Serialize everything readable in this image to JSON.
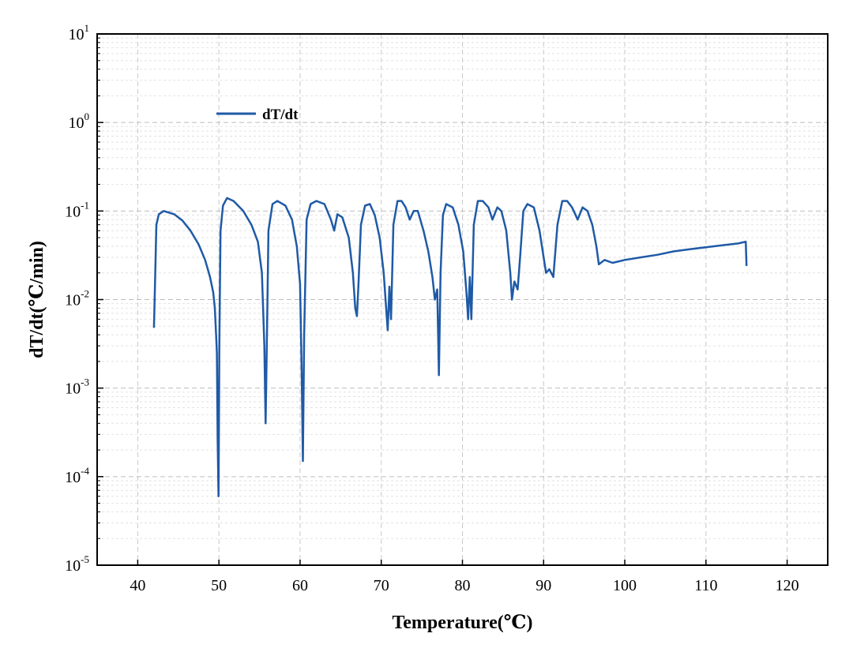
{
  "chart_data": {
    "type": "line",
    "title": "",
    "xlabel": "Temperature(℃)",
    "ylabel": "dT/dt(℃/min)",
    "xlim": [
      35,
      125
    ],
    "ylim": [
      1e-05,
      10
    ],
    "yscale": "log",
    "x_ticks": [
      40,
      50,
      60,
      70,
      80,
      90,
      100,
      110,
      120
    ],
    "y_tick_base": "10",
    "y_tick_exponents": [
      "-5",
      "-4",
      "-3",
      "-2",
      "-1",
      "0",
      "1"
    ],
    "grid": true,
    "legend_position": "top-left",
    "series": [
      {
        "name": "dT/dt",
        "color": "#1f5aa6",
        "points": [
          [
            42.0,
            0.0048
          ],
          [
            42.1,
            0.012
          ],
          [
            42.3,
            0.07
          ],
          [
            42.6,
            0.092
          ],
          [
            43.2,
            0.1
          ],
          [
            44.5,
            0.092
          ],
          [
            45.5,
            0.078
          ],
          [
            46.5,
            0.06
          ],
          [
            47.5,
            0.042
          ],
          [
            48.3,
            0.028
          ],
          [
            48.9,
            0.018
          ],
          [
            49.3,
            0.012
          ],
          [
            49.5,
            0.008
          ],
          [
            49.65,
            0.004
          ],
          [
            49.75,
            0.0025
          ],
          [
            49.85,
            0.00025
          ],
          [
            49.95,
            6e-05
          ],
          [
            50.05,
            0.003
          ],
          [
            50.2,
            0.06
          ],
          [
            50.5,
            0.115
          ],
          [
            51.0,
            0.14
          ],
          [
            51.8,
            0.13
          ],
          [
            53.0,
            0.1
          ],
          [
            54.0,
            0.07
          ],
          [
            54.8,
            0.045
          ],
          [
            55.3,
            0.02
          ],
          [
            55.6,
            0.003
          ],
          [
            55.75,
            0.0004
          ],
          [
            55.9,
            0.003
          ],
          [
            56.1,
            0.06
          ],
          [
            56.6,
            0.12
          ],
          [
            57.2,
            0.13
          ],
          [
            58.2,
            0.115
          ],
          [
            59.0,
            0.08
          ],
          [
            59.6,
            0.04
          ],
          [
            60.0,
            0.015
          ],
          [
            60.2,
            0.0015
          ],
          [
            60.35,
            0.00015
          ],
          [
            60.5,
            0.004
          ],
          [
            60.8,
            0.08
          ],
          [
            61.3,
            0.12
          ],
          [
            62.0,
            0.13
          ],
          [
            63.0,
            0.12
          ],
          [
            63.8,
            0.08
          ],
          [
            64.2,
            0.06
          ],
          [
            64.6,
            0.092
          ],
          [
            65.2,
            0.085
          ],
          [
            66.0,
            0.05
          ],
          [
            66.5,
            0.02
          ],
          [
            66.8,
            0.008
          ],
          [
            67.0,
            0.0065
          ],
          [
            67.2,
            0.015
          ],
          [
            67.5,
            0.07
          ],
          [
            68.0,
            0.115
          ],
          [
            68.6,
            0.12
          ],
          [
            69.2,
            0.09
          ],
          [
            69.8,
            0.05
          ],
          [
            70.3,
            0.02
          ],
          [
            70.6,
            0.008
          ],
          [
            70.8,
            0.0045
          ],
          [
            71.0,
            0.014
          ],
          [
            71.2,
            0.006
          ],
          [
            71.5,
            0.07
          ],
          [
            72.0,
            0.13
          ],
          [
            72.5,
            0.13
          ],
          [
            73.0,
            0.11
          ],
          [
            73.5,
            0.08
          ],
          [
            74.0,
            0.1
          ],
          [
            74.5,
            0.1
          ],
          [
            75.2,
            0.06
          ],
          [
            75.8,
            0.035
          ],
          [
            76.3,
            0.018
          ],
          [
            76.6,
            0.01
          ],
          [
            76.9,
            0.013
          ],
          [
            77.1,
            0.0014
          ],
          [
            77.3,
            0.02
          ],
          [
            77.6,
            0.09
          ],
          [
            78.0,
            0.12
          ],
          [
            78.8,
            0.11
          ],
          [
            79.5,
            0.07
          ],
          [
            80.1,
            0.035
          ],
          [
            80.5,
            0.012
          ],
          [
            80.7,
            0.006
          ],
          [
            80.9,
            0.018
          ],
          [
            81.1,
            0.006
          ],
          [
            81.4,
            0.07
          ],
          [
            81.9,
            0.13
          ],
          [
            82.5,
            0.13
          ],
          [
            83.2,
            0.11
          ],
          [
            83.7,
            0.08
          ],
          [
            84.3,
            0.11
          ],
          [
            84.8,
            0.1
          ],
          [
            85.4,
            0.06
          ],
          [
            85.9,
            0.02
          ],
          [
            86.1,
            0.01
          ],
          [
            86.4,
            0.016
          ],
          [
            86.8,
            0.013
          ],
          [
            87.1,
            0.03
          ],
          [
            87.5,
            0.1
          ],
          [
            88.0,
            0.12
          ],
          [
            88.8,
            0.11
          ],
          [
            89.5,
            0.06
          ],
          [
            90.0,
            0.03
          ],
          [
            90.3,
            0.02
          ],
          [
            90.7,
            0.022
          ],
          [
            91.2,
            0.018
          ],
          [
            91.7,
            0.07
          ],
          [
            92.3,
            0.13
          ],
          [
            92.9,
            0.13
          ],
          [
            93.5,
            0.11
          ],
          [
            94.2,
            0.08
          ],
          [
            94.8,
            0.11
          ],
          [
            95.4,
            0.1
          ],
          [
            96.0,
            0.07
          ],
          [
            96.5,
            0.04
          ],
          [
            96.8,
            0.025
          ],
          [
            97.5,
            0.028
          ],
          [
            98.5,
            0.026
          ],
          [
            100.0,
            0.028
          ],
          [
            102.0,
            0.03
          ],
          [
            104.0,
            0.032
          ],
          [
            106.0,
            0.035
          ],
          [
            108.0,
            0.037
          ],
          [
            110.0,
            0.039
          ],
          [
            112.0,
            0.041
          ],
          [
            114.0,
            0.043
          ],
          [
            114.9,
            0.045
          ],
          [
            115.0,
            0.024
          ]
        ]
      }
    ]
  }
}
